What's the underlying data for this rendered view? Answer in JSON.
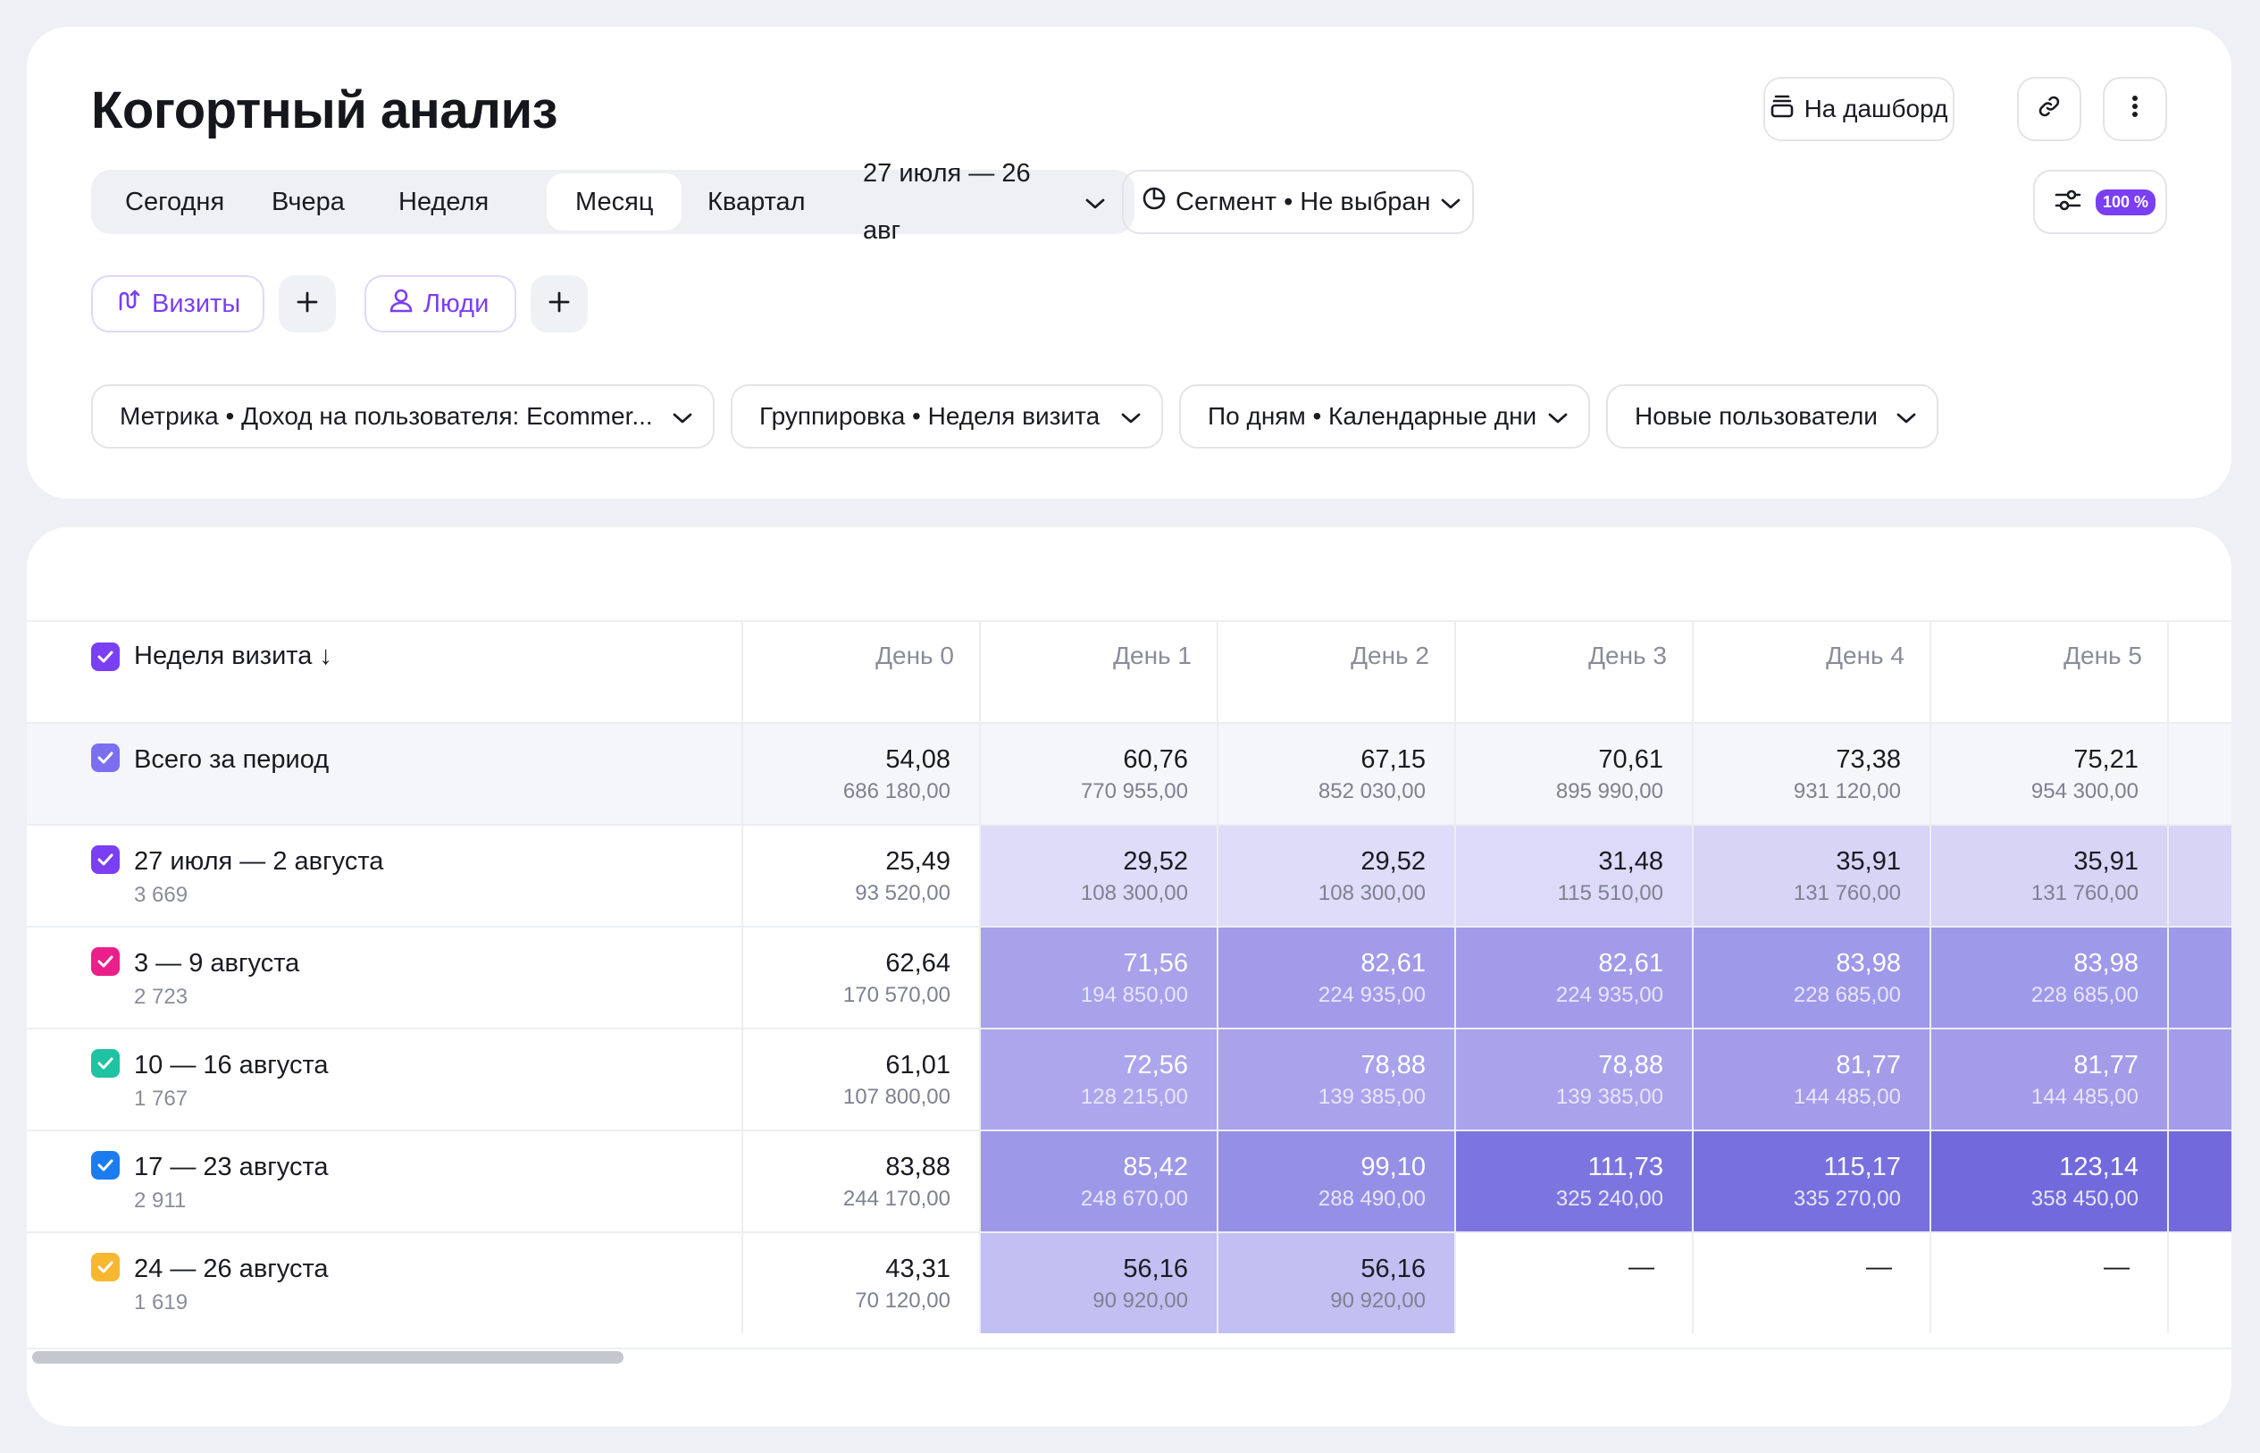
{
  "title": "Когортный анализ",
  "header_buttons": {
    "dashboard": "На дашборд"
  },
  "period": {
    "today": "Сегодня",
    "yesterday": "Вчера",
    "week": "Неделя",
    "month": "Месяц",
    "quarter": "Квартал",
    "range": "27 июля — 26 авг"
  },
  "segment": "Сегмент • Не выбран",
  "sampling_badge": "100 %",
  "chips": {
    "visits": "Визиты",
    "people": "Люди"
  },
  "filters": {
    "metric": "Метрика • Доход на пользователя: Ecommer...",
    "grouping": "Группировка • Неделя визита",
    "days": "По дням • Календарные дни",
    "users": "Новые пользователи"
  },
  "table": {
    "first_header": "Неделя визита ↓",
    "columns": [
      "День 0",
      "День 1",
      "День 2",
      "День 3",
      "День 4",
      "День 5"
    ],
    "total": {
      "label": "Всего за период",
      "cells": [
        [
          "54,08",
          "686 180,00"
        ],
        [
          "60,76",
          "770 955,00"
        ],
        [
          "67,15",
          "852 030,00"
        ],
        [
          "70,61",
          "895 990,00"
        ],
        [
          "73,38",
          "931 120,00"
        ],
        [
          "75,21",
          "954 300,00"
        ]
      ]
    },
    "rows": [
      {
        "label": "27 июля — 2 августа",
        "count": "3 669",
        "check_color": "#7a3ff2",
        "cells": [
          [
            "25,49",
            "93 520,00"
          ],
          [
            "29,52",
            "108 300,00"
          ],
          [
            "29,52",
            "108 300,00"
          ],
          [
            "31,48",
            "115 510,00"
          ],
          [
            "35,91",
            "131 760,00"
          ],
          [
            "35,91",
            "131 760,00"
          ]
        ]
      },
      {
        "label": "3 — 9 августа",
        "count": "2 723",
        "check_color": "#ea1f8a",
        "cells": [
          [
            "62,64",
            "170 570,00"
          ],
          [
            "71,56",
            "194 850,00"
          ],
          [
            "82,61",
            "224 935,00"
          ],
          [
            "82,61",
            "224 935,00"
          ],
          [
            "83,98",
            "228 685,00"
          ],
          [
            "83,98",
            "228 685,00"
          ]
        ]
      },
      {
        "label": "10 — 16 августа",
        "count": "1 767",
        "check_color": "#1fc2a1",
        "cells": [
          [
            "61,01",
            "107 800,00"
          ],
          [
            "72,56",
            "128 215,00"
          ],
          [
            "78,88",
            "139 385,00"
          ],
          [
            "78,88",
            "139 385,00"
          ],
          [
            "81,77",
            "144 485,00"
          ],
          [
            "81,77",
            "144 485,00"
          ]
        ]
      },
      {
        "label": "17 — 23 августа",
        "count": "2 911",
        "check_color": "#1b7cf0",
        "cells": [
          [
            "83,88",
            "244 170,00"
          ],
          [
            "85,42",
            "248 670,00"
          ],
          [
            "99,10",
            "288 490,00"
          ],
          [
            "111,73",
            "325 240,00"
          ],
          [
            "115,17",
            "335 270,00"
          ],
          [
            "123,14",
            "358 450,00"
          ]
        ]
      },
      {
        "label": "24 — 26 августа",
        "count": "1 619",
        "check_color": "#f8b731",
        "cells": [
          [
            "43,31",
            "70 120,00"
          ],
          [
            "56,16",
            "90 920,00"
          ],
          [
            "56,16",
            "90 920,00"
          ],
          [
            "—",
            ""
          ],
          [
            "—",
            ""
          ],
          [
            "—",
            ""
          ]
        ]
      }
    ]
  },
  "colors": {
    "accent": "#7a3ff2",
    "header_check": "#7a3ff2",
    "total_check": "#7b6ff0"
  }
}
